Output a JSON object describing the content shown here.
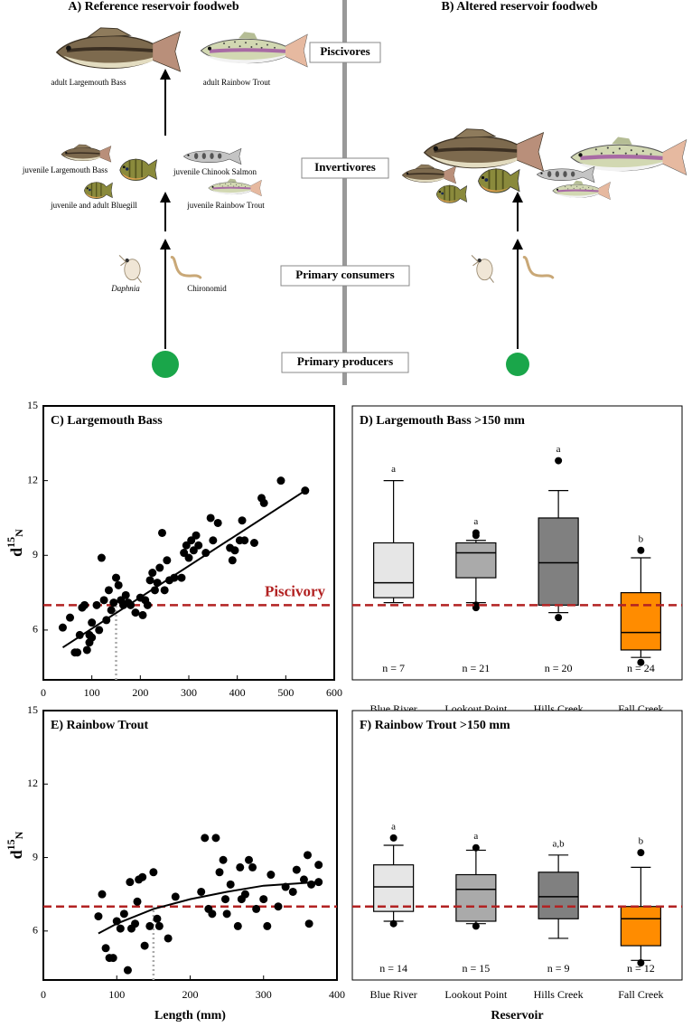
{
  "foodweb": {
    "panel_a_title": "A) Reference reservoir foodweb",
    "panel_b_title": "B) Altered reservoir foodweb",
    "levels": [
      "Piscivores",
      "Invertivores",
      "Primary consumers",
      "Primary producers"
    ],
    "organisms": [
      "adult Largemouth Bass",
      "adult Rainbow Trout",
      "juvenile Largemouth Bass",
      "juvenile Chinook Salmon",
      "juvenile and adult Bluegill",
      "juvenile Rainbow Trout",
      "Daphnia",
      "Chironomid"
    ]
  },
  "chart_data": [
    {
      "type": "scatter",
      "title": "C) Largemouth Bass",
      "y_label": {
        "base": "d",
        "sup": "15",
        "sub": "N"
      },
      "x": [
        40,
        55,
        65,
        70,
        75,
        80,
        85,
        90,
        95,
        95,
        100,
        100,
        110,
        115,
        120,
        125,
        130,
        135,
        140,
        145,
        150,
        155,
        160,
        165,
        170,
        175,
        180,
        190,
        200,
        205,
        210,
        215,
        220,
        225,
        230,
        235,
        240,
        245,
        250,
        255,
        260,
        270,
        285,
        290,
        295,
        300,
        305,
        310,
        315,
        320,
        335,
        345,
        350,
        360,
        385,
        390,
        395,
        405,
        410,
        415,
        435,
        450,
        455,
        490,
        540
      ],
      "values": [
        6.1,
        6.5,
        5.1,
        5.1,
        5.8,
        6.9,
        7.0,
        5.2,
        5.8,
        5.5,
        6.3,
        5.7,
        7.0,
        6.0,
        8.9,
        7.2,
        6.4,
        7.6,
        6.8,
        7.1,
        8.1,
        7.8,
        7.2,
        7.0,
        7.4,
        7.1,
        7.0,
        6.7,
        7.3,
        6.6,
        7.2,
        7.0,
        8.0,
        8.3,
        7.6,
        7.9,
        8.5,
        9.9,
        7.6,
        8.8,
        8.0,
        8.1,
        8.1,
        9.1,
        9.4,
        8.9,
        9.6,
        9.2,
        9.8,
        9.4,
        9.1,
        10.5,
        9.6,
        10.3,
        9.3,
        8.8,
        9.2,
        9.6,
        10.4,
        9.6,
        9.5,
        11.3,
        11.1,
        12.0,
        11.6
      ],
      "color": "#000000",
      "fit": {
        "x": [
          40,
          540
        ],
        "values": [
          5.3,
          11.6
        ]
      },
      "threshold": 7,
      "threshold_label": "Piscivory",
      "threshold_color": "#b22222",
      "cutoff_x": 150,
      "xlim": [
        0,
        600
      ],
      "xticks": [
        0,
        100,
        200,
        300,
        400,
        500,
        600
      ],
      "ylim": [
        4,
        15
      ],
      "yticks": [
        6,
        9,
        12,
        15
      ]
    },
    {
      "type": "box",
      "title": "D) Largemouth Bass >150 mm",
      "categories": [
        "Blue River",
        "Lookout Point",
        "Hills Creek",
        "Fall Creek"
      ],
      "boxes": [
        {
          "whisker_low": 7.1,
          "q1": 7.3,
          "median": 7.9,
          "q3": 9.5,
          "whisker_high": 12.0,
          "outliers": []
        },
        {
          "whisker_low": 7.1,
          "q1": 8.1,
          "median": 9.1,
          "q3": 9.5,
          "whisker_high": 9.6,
          "outliers": [
            6.9,
            7.0,
            9.8,
            9.9
          ]
        },
        {
          "whisker_low": 6.7,
          "q1": 7.0,
          "median": 8.7,
          "q3": 10.5,
          "whisker_high": 11.6,
          "outliers": [
            12.8,
            6.5
          ]
        },
        {
          "whisker_low": 4.9,
          "q1": 5.2,
          "median": 5.9,
          "q3": 7.5,
          "whisker_high": 8.9,
          "outliers": [
            9.2,
            4.7
          ]
        }
      ],
      "colors": [
        "#e6e6e6",
        "#aaaaaa",
        "#808080",
        "#ff8c00"
      ],
      "letters": [
        "a",
        "a",
        "a",
        "b"
      ],
      "n_labels": [
        "n = 7",
        "n = 21",
        "n = 20",
        "n = 24"
      ],
      "threshold": 7,
      "threshold_color": "#b22222",
      "ylim": [
        4,
        15
      ]
    },
    {
      "type": "scatter",
      "title": "E) Rainbow Trout",
      "y_label": {
        "base": "d",
        "sup": "15",
        "sub": "N"
      },
      "x_label": "Length (mm)",
      "x": [
        75,
        80,
        85,
        90,
        95,
        100,
        105,
        110,
        115,
        118,
        120,
        125,
        128,
        130,
        135,
        138,
        145,
        150,
        155,
        158,
        170,
        180,
        215,
        220,
        225,
        230,
        235,
        240,
        245,
        248,
        250,
        255,
        265,
        268,
        270,
        275,
        280,
        285,
        290,
        300,
        305,
        310,
        320,
        330,
        340,
        345,
        355,
        360,
        362,
        365,
        375,
        375
      ],
      "values": [
        6.6,
        7.5,
        5.3,
        4.9,
        4.9,
        6.4,
        6.1,
        6.7,
        4.4,
        8.0,
        6.1,
        6.3,
        7.2,
        8.1,
        8.2,
        5.4,
        6.2,
        8.4,
        6.5,
        6.2,
        5.7,
        7.4,
        7.6,
        9.8,
        6.9,
        6.7,
        9.8,
        8.4,
        8.9,
        7.3,
        6.7,
        7.9,
        6.2,
        8.6,
        7.3,
        7.5,
        8.9,
        8.6,
        6.9,
        7.3,
        6.2,
        8.3,
        7.0,
        7.8,
        7.6,
        8.5,
        8.1,
        9.1,
        6.3,
        7.9,
        8.7,
        8.0
      ],
      "color": "#000000",
      "fit": {
        "x": [
          75,
          100,
          150,
          200,
          250,
          300,
          350,
          375
        ],
        "values": [
          5.9,
          6.3,
          6.9,
          7.3,
          7.6,
          7.85,
          7.95,
          8.0
        ]
      },
      "threshold": 7,
      "threshold_color": "#b22222",
      "cutoff_x": 150,
      "xlim": [
        0,
        400
      ],
      "xticks": [
        0,
        100,
        200,
        300,
        400
      ],
      "ylim": [
        4,
        15
      ],
      "yticks": [
        6,
        9,
        12,
        15
      ]
    },
    {
      "type": "box",
      "title": "F) Rainbow Trout >150 mm",
      "x_label": "Reservoir",
      "categories": [
        "Blue River",
        "Lookout Point",
        "Hills Creek",
        "Fall Creek"
      ],
      "boxes": [
        {
          "whisker_low": 6.4,
          "q1": 6.8,
          "median": 7.8,
          "q3": 8.7,
          "whisker_high": 9.5,
          "outliers": [
            9.8,
            6.3
          ]
        },
        {
          "whisker_low": 6.3,
          "q1": 6.4,
          "median": 7.7,
          "q3": 8.3,
          "whisker_high": 9.3,
          "outliers": [
            9.4,
            6.2
          ]
        },
        {
          "whisker_low": 5.7,
          "q1": 6.5,
          "median": 7.4,
          "q3": 8.4,
          "whisker_high": 9.1,
          "outliers": []
        },
        {
          "whisker_low": 4.8,
          "q1": 5.4,
          "median": 6.5,
          "q3": 7.0,
          "whisker_high": 8.6,
          "outliers": [
            9.2,
            4.7
          ]
        }
      ],
      "colors": [
        "#e6e6e6",
        "#aaaaaa",
        "#808080",
        "#ff8c00"
      ],
      "letters": [
        "a",
        "a",
        "a,b",
        "b"
      ],
      "n_labels": [
        "n = 14",
        "n = 15",
        "n = 9",
        "n = 12"
      ],
      "threshold": 7,
      "threshold_color": "#b22222",
      "ylim": [
        4,
        15
      ]
    }
  ]
}
